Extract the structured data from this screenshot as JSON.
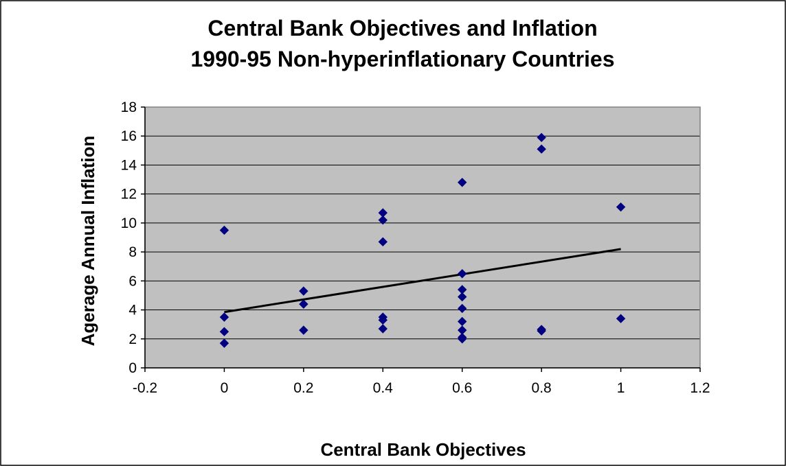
{
  "chart_data": {
    "type": "scatter",
    "title": [
      "Central Bank Objectives and Inflation",
      "1990-95 Non-hyperinflationary Countries"
    ],
    "xlabel": "Central Bank Objectives",
    "ylabel": "Agerage Annual Inflation",
    "xlim": [
      -0.2,
      1.2
    ],
    "ylim": [
      0,
      18
    ],
    "xticks": [
      "-0.2",
      "0",
      "0.2",
      "0.4",
      "0.6",
      "0.8",
      "1",
      "1.2"
    ],
    "yticks": [
      "0",
      "2",
      "4",
      "6",
      "8",
      "10",
      "12",
      "14",
      "16",
      "18"
    ],
    "grid": true,
    "legend": "none",
    "marker": "diamond",
    "colors": {
      "points": "#000080",
      "trendline": "#000000",
      "plot_background": "#c0c0c0",
      "page_background": "#ffffff"
    },
    "series": [
      {
        "x": [
          0,
          0,
          0,
          0,
          0.2,
          0.2,
          0.2,
          0.4,
          0.4,
          0.4,
          0.4,
          0.4,
          0.4,
          0.6,
          0.6,
          0.6,
          0.6,
          0.6,
          0.6,
          0.6,
          0.6,
          0.6,
          0.8,
          0.8,
          0.8,
          0.8,
          1,
          1
        ],
        "y": [
          9.5,
          3.5,
          2.5,
          1.7,
          5.3,
          4.4,
          2.6,
          10.7,
          10.2,
          8.7,
          3.5,
          3.3,
          2.7,
          12.8,
          6.5,
          5.4,
          4.9,
          4.1,
          3.2,
          2.6,
          2.1,
          2.0,
          15.9,
          15.1,
          2.65,
          2.55,
          11.1,
          3.4
        ]
      }
    ],
    "trendline": {
      "x": [
        0,
        1
      ],
      "y": [
        3.85,
        8.2
      ]
    }
  }
}
